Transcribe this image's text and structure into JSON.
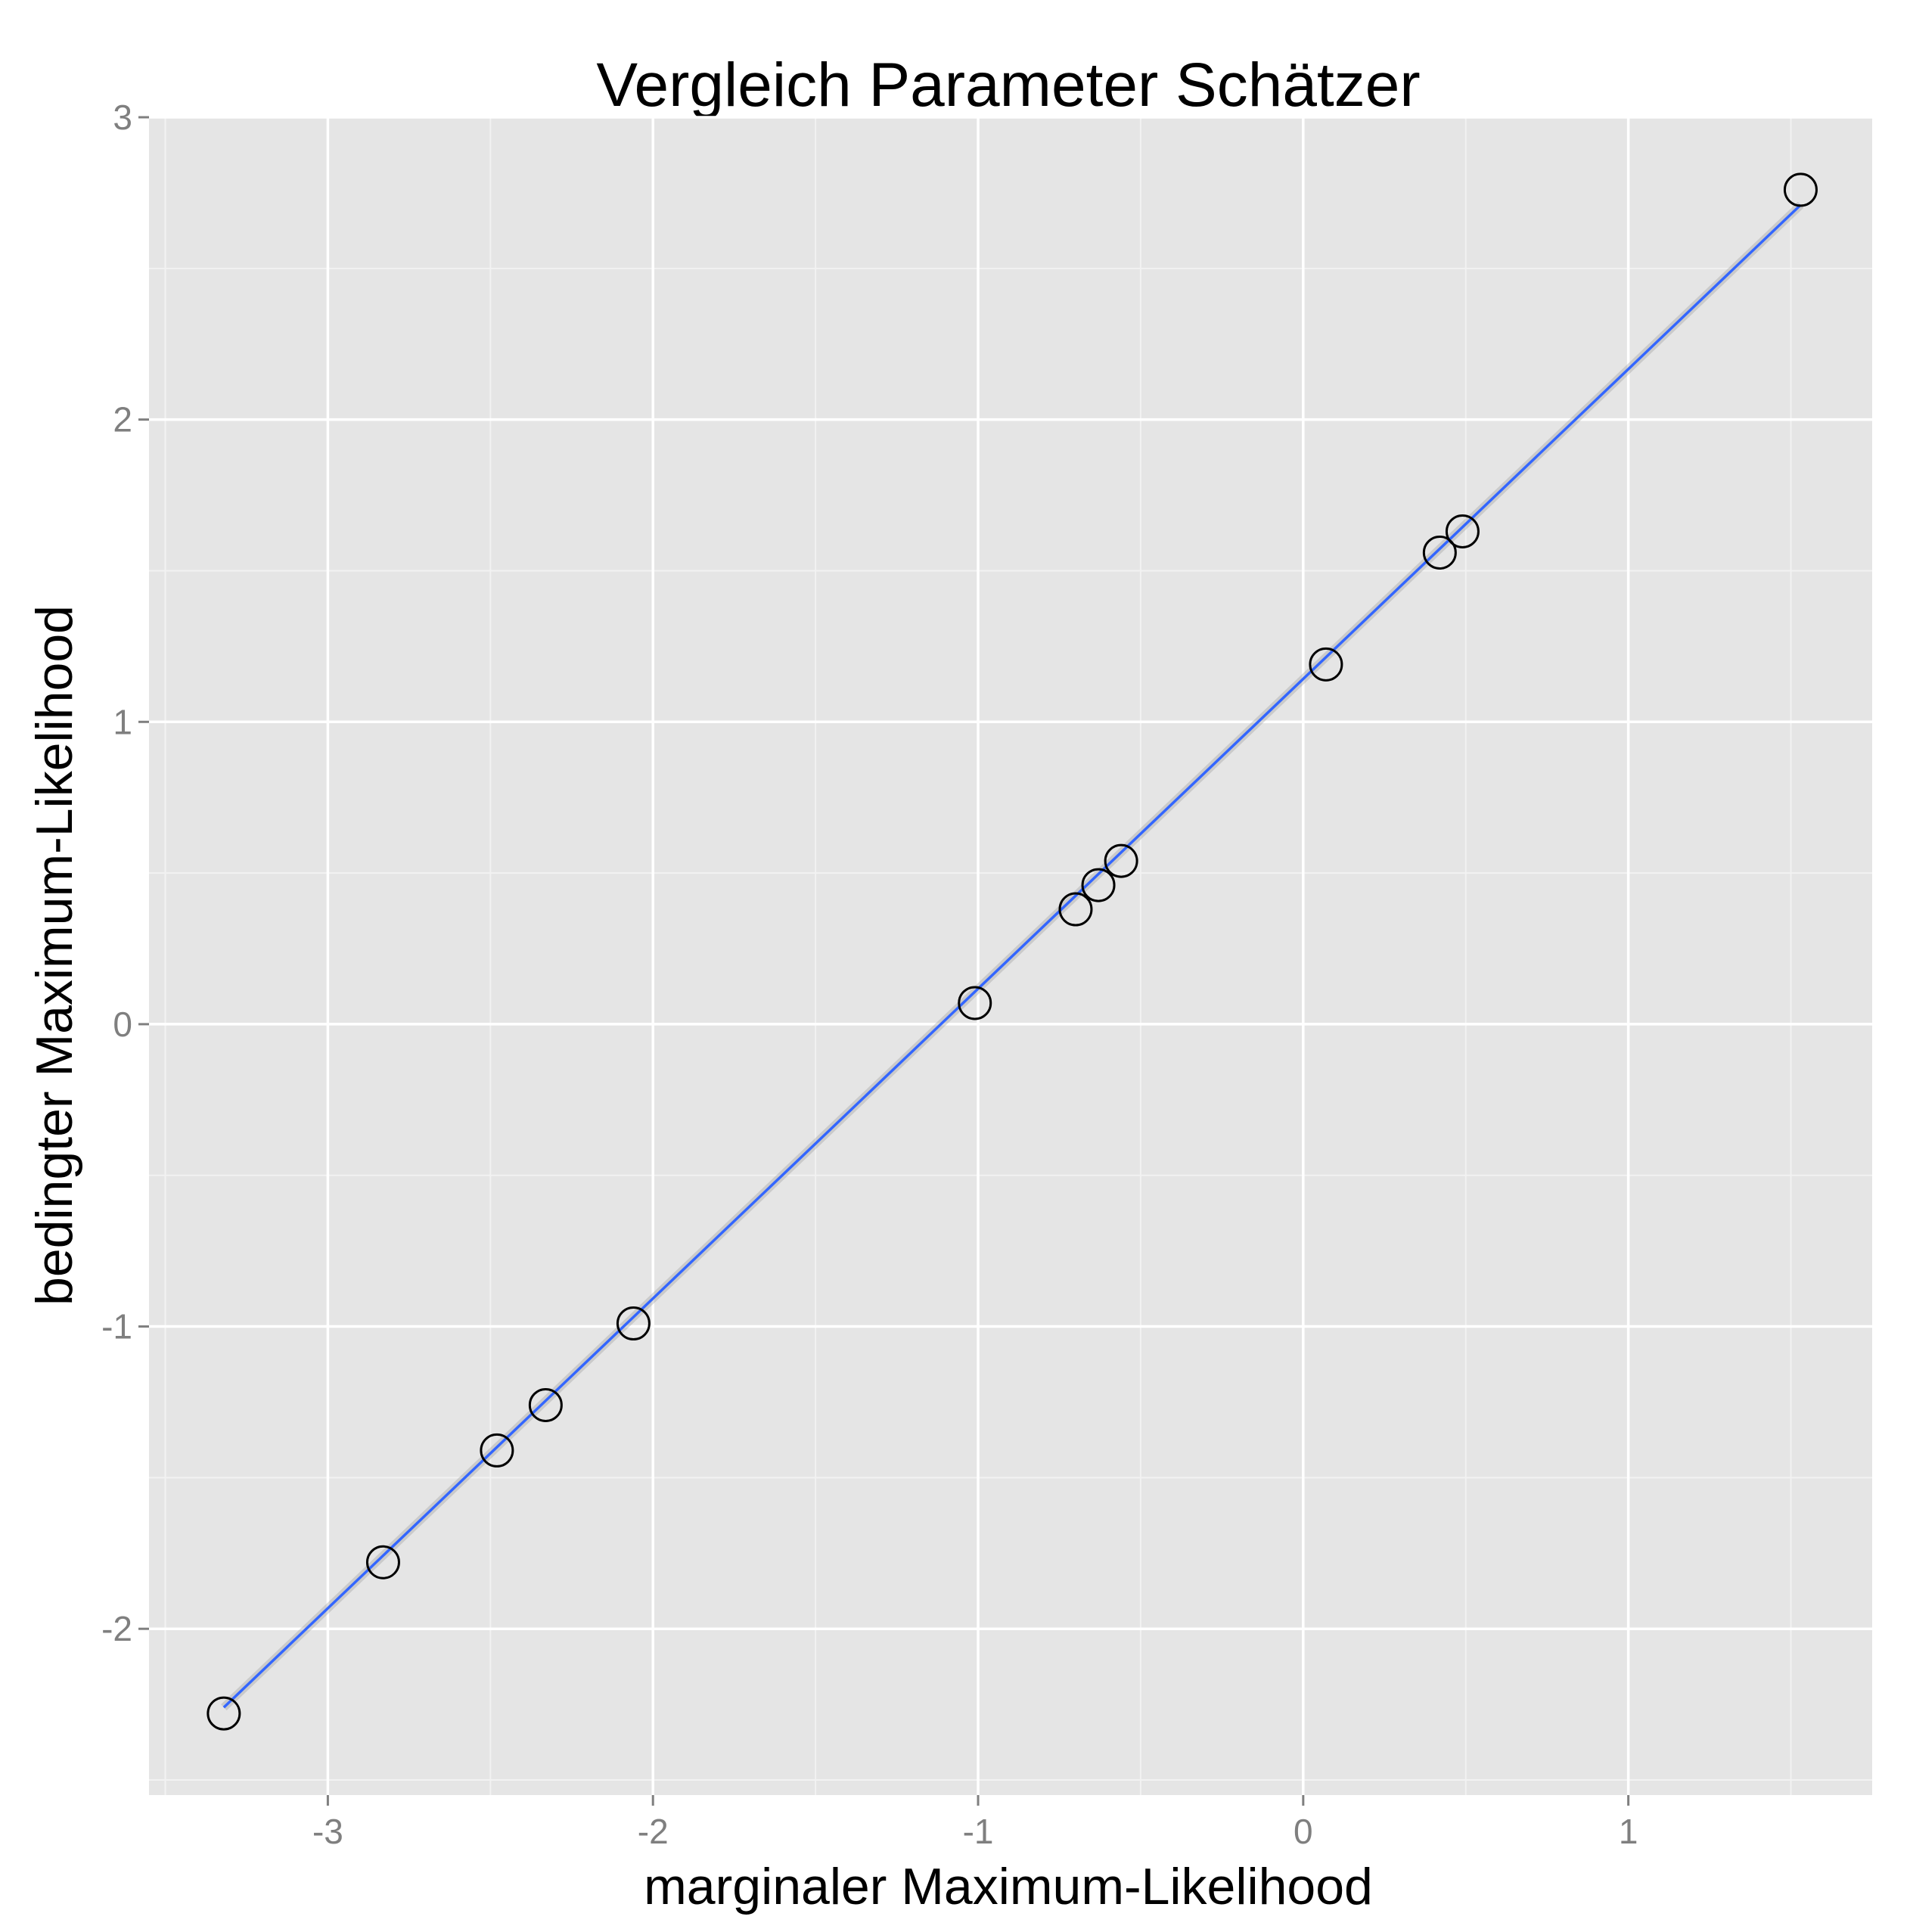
{
  "chart_data": {
    "type": "scatter",
    "title": "Vergleich Parameter Schätzer",
    "xlabel": "marginaler Maximum-Likelihood",
    "ylabel": "bedingter Maximum-Likelihood",
    "xlim": [
      -3.55,
      1.75
    ],
    "ylim": [
      -2.55,
      3.0
    ],
    "x_ticks": [
      -3,
      -2,
      -1,
      0,
      1
    ],
    "y_ticks": [
      -2,
      -1,
      0,
      1,
      2,
      3
    ],
    "x_tick_labels": [
      "-3",
      "-2",
      "-1",
      "0",
      "1"
    ],
    "y_tick_labels": [
      "-2",
      "-1",
      "0",
      "1",
      "2",
      "3"
    ],
    "grid": true,
    "background": "#e5e5e5",
    "grid_color": "#ffffff",
    "point_style": "open circle",
    "point_color": "#000000",
    "series": [
      {
        "values": [
          {
            "x": -3.32,
            "y": -2.28
          },
          {
            "x": -2.83,
            "y": -1.78
          },
          {
            "x": -2.48,
            "y": -1.41
          },
          {
            "x": -2.33,
            "y": -1.26
          },
          {
            "x": -2.06,
            "y": -0.99
          },
          {
            "x": -1.01,
            "y": 0.07
          },
          {
            "x": -0.7,
            "y": 0.38
          },
          {
            "x": -0.63,
            "y": 0.46
          },
          {
            "x": -0.56,
            "y": 0.54
          },
          {
            "x": 0.07,
            "y": 1.19
          },
          {
            "x": 0.42,
            "y": 1.56
          },
          {
            "x": 0.49,
            "y": 1.63
          },
          {
            "x": 1.53,
            "y": 2.76
          }
        ]
      }
    ],
    "fit_line": {
      "type": "linear regression",
      "color": "#3366ff",
      "confidence_band_color": "#999999",
      "from": {
        "x": -3.32,
        "y": -2.26
      },
      "to": {
        "x": 1.53,
        "y": 2.71
      }
    }
  }
}
